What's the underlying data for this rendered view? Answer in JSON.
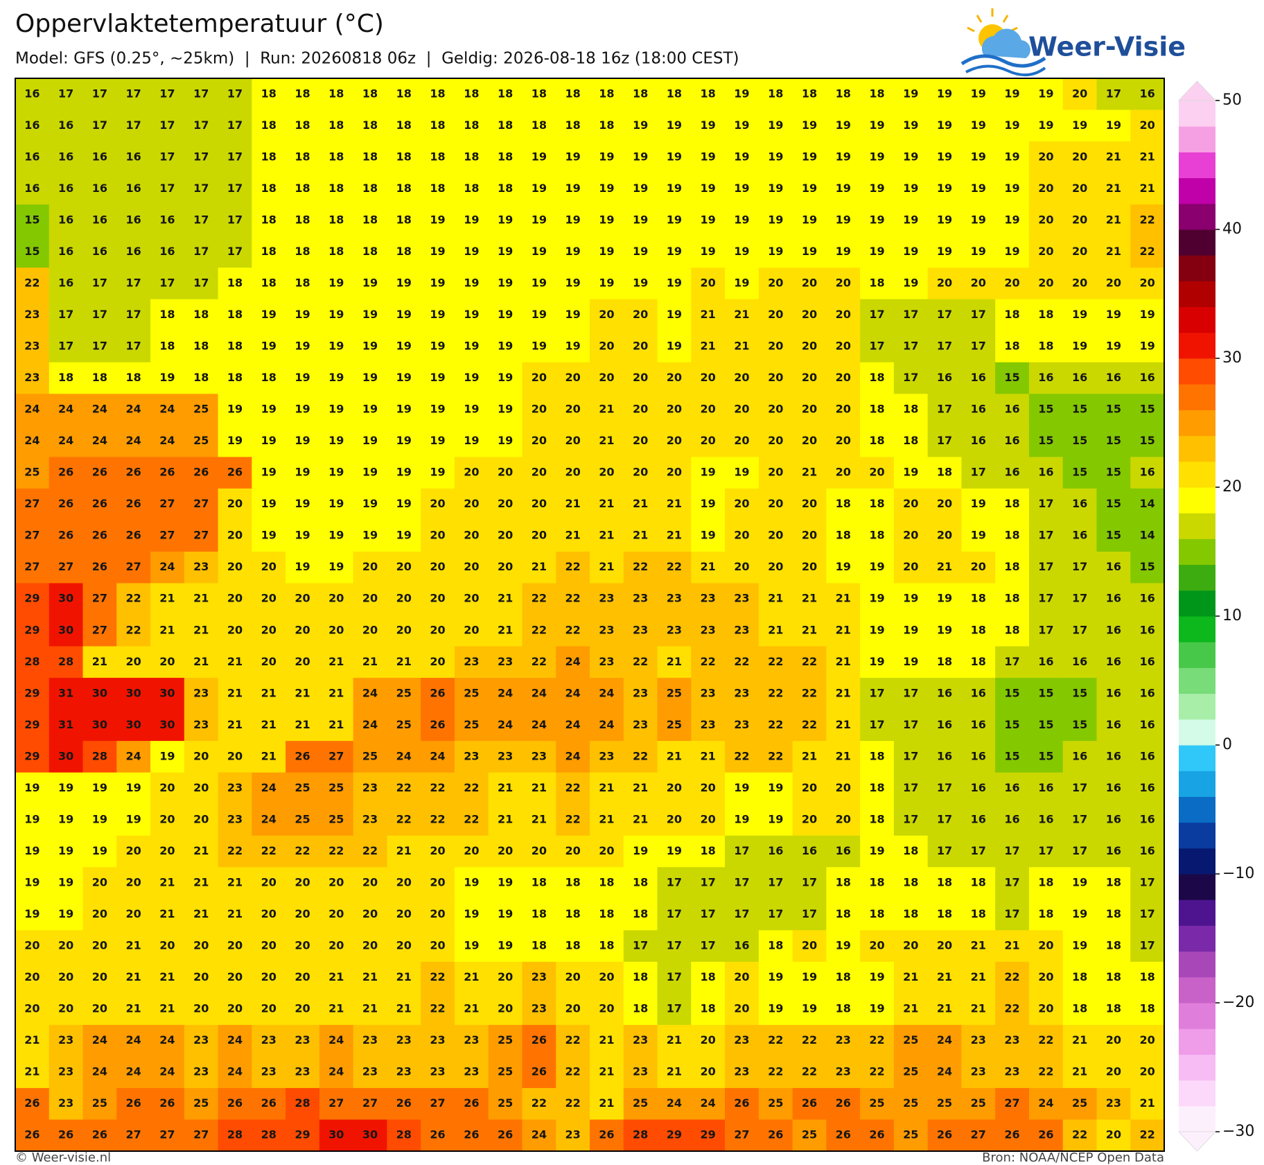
{
  "chart_data": {
    "type": "heatmap",
    "title": "Oppervlaktetemperatuur (°C)",
    "subtitle": "Model: GFS (0.25°, ~25km)  |  Run: 20260818 06z  |  Geldig: 2026-08-18 16z (18:00 CEST)",
    "brand": "Weer-Visie",
    "credit": "© Weer-visie.nl",
    "source": "Bron: NOAA/NCEP Open Data",
    "values": [
      [
        16,
        17,
        17,
        17,
        17,
        17,
        17,
        18,
        18,
        18,
        18,
        18,
        18,
        18,
        18,
        18,
        18,
        18,
        18,
        18,
        18,
        19,
        18,
        18,
        18,
        18,
        19,
        19,
        19,
        19,
        19,
        20,
        17,
        16
      ],
      [
        16,
        16,
        17,
        17,
        17,
        17,
        17,
        18,
        18,
        18,
        18,
        18,
        18,
        18,
        18,
        18,
        18,
        18,
        19,
        19,
        19,
        19,
        19,
        19,
        19,
        19,
        19,
        19,
        19,
        19,
        19,
        19,
        19,
        20
      ],
      [
        16,
        16,
        16,
        16,
        17,
        17,
        17,
        18,
        18,
        18,
        18,
        18,
        18,
        18,
        18,
        19,
        19,
        19,
        19,
        19,
        19,
        19,
        19,
        19,
        19,
        19,
        19,
        19,
        19,
        19,
        20,
        20,
        21,
        21
      ],
      [
        16,
        16,
        16,
        16,
        17,
        17,
        17,
        18,
        18,
        18,
        18,
        18,
        18,
        18,
        18,
        19,
        19,
        19,
        19,
        19,
        19,
        19,
        19,
        19,
        19,
        19,
        19,
        19,
        19,
        19,
        20,
        20,
        21,
        21
      ],
      [
        15,
        16,
        16,
        16,
        16,
        17,
        17,
        18,
        18,
        18,
        18,
        18,
        19,
        19,
        19,
        19,
        19,
        19,
        19,
        19,
        19,
        19,
        19,
        19,
        19,
        19,
        19,
        19,
        19,
        19,
        20,
        20,
        21,
        22
      ],
      [
        15,
        16,
        16,
        16,
        16,
        17,
        17,
        18,
        18,
        18,
        18,
        18,
        19,
        19,
        19,
        19,
        19,
        19,
        19,
        19,
        19,
        19,
        19,
        19,
        19,
        19,
        19,
        19,
        19,
        19,
        20,
        20,
        21,
        22
      ],
      [
        22,
        16,
        17,
        17,
        17,
        17,
        18,
        18,
        18,
        19,
        19,
        19,
        19,
        19,
        19,
        19,
        19,
        19,
        19,
        19,
        20,
        19,
        20,
        20,
        20,
        18,
        19,
        20,
        20,
        20,
        20,
        20,
        20,
        20
      ],
      [
        23,
        17,
        17,
        17,
        18,
        18,
        18,
        19,
        19,
        19,
        19,
        19,
        19,
        19,
        19,
        19,
        19,
        20,
        20,
        19,
        21,
        21,
        20,
        20,
        20,
        17,
        17,
        17,
        17,
        18,
        18,
        19,
        19,
        19
      ],
      [
        23,
        17,
        17,
        17,
        18,
        18,
        18,
        19,
        19,
        19,
        19,
        19,
        19,
        19,
        19,
        19,
        19,
        20,
        20,
        19,
        21,
        21,
        20,
        20,
        20,
        17,
        17,
        17,
        17,
        18,
        18,
        19,
        19,
        19
      ],
      [
        23,
        18,
        18,
        18,
        19,
        18,
        18,
        18,
        19,
        19,
        19,
        19,
        19,
        19,
        19,
        20,
        20,
        20,
        20,
        20,
        20,
        20,
        20,
        20,
        20,
        18,
        17,
        16,
        16,
        15,
        16,
        16,
        16,
        16
      ],
      [
        24,
        24,
        24,
        24,
        24,
        25,
        19,
        19,
        19,
        19,
        19,
        19,
        19,
        19,
        19,
        20,
        20,
        21,
        20,
        20,
        20,
        20,
        20,
        20,
        20,
        18,
        18,
        17,
        16,
        16,
        15,
        15,
        15,
        15
      ],
      [
        24,
        24,
        24,
        24,
        24,
        25,
        19,
        19,
        19,
        19,
        19,
        19,
        19,
        19,
        19,
        20,
        20,
        21,
        20,
        20,
        20,
        20,
        20,
        20,
        20,
        18,
        18,
        17,
        16,
        16,
        15,
        15,
        15,
        15
      ],
      [
        25,
        26,
        26,
        26,
        26,
        26,
        26,
        19,
        19,
        19,
        19,
        19,
        19,
        20,
        20,
        20,
        20,
        20,
        20,
        20,
        19,
        19,
        20,
        21,
        20,
        20,
        19,
        18,
        17,
        16,
        16,
        15,
        15,
        16
      ],
      [
        27,
        26,
        26,
        26,
        27,
        27,
        20,
        19,
        19,
        19,
        19,
        19,
        20,
        20,
        20,
        20,
        21,
        21,
        21,
        21,
        19,
        20,
        20,
        20,
        18,
        18,
        20,
        20,
        19,
        18,
        17,
        16,
        15,
        14
      ],
      [
        27,
        26,
        26,
        26,
        27,
        27,
        20,
        19,
        19,
        19,
        19,
        19,
        20,
        20,
        20,
        20,
        21,
        21,
        21,
        21,
        19,
        20,
        20,
        20,
        18,
        18,
        20,
        20,
        19,
        18,
        17,
        16,
        15,
        14
      ],
      [
        27,
        27,
        26,
        27,
        24,
        23,
        20,
        20,
        19,
        19,
        20,
        20,
        20,
        20,
        20,
        21,
        22,
        21,
        22,
        22,
        21,
        20,
        20,
        20,
        19,
        19,
        20,
        21,
        20,
        18,
        17,
        17,
        16,
        15
      ],
      [
        29,
        30,
        27,
        22,
        21,
        21,
        20,
        20,
        20,
        20,
        20,
        20,
        20,
        20,
        21,
        22,
        22,
        23,
        23,
        23,
        23,
        23,
        21,
        21,
        21,
        19,
        19,
        19,
        18,
        18,
        17,
        17,
        16,
        16
      ],
      [
        29,
        30,
        27,
        22,
        21,
        21,
        20,
        20,
        20,
        20,
        20,
        20,
        20,
        20,
        21,
        22,
        22,
        23,
        23,
        23,
        23,
        23,
        21,
        21,
        21,
        19,
        19,
        19,
        18,
        18,
        17,
        17,
        16,
        16
      ],
      [
        28,
        28,
        21,
        20,
        20,
        21,
        21,
        20,
        20,
        21,
        21,
        21,
        20,
        23,
        23,
        22,
        24,
        23,
        22,
        21,
        22,
        22,
        22,
        22,
        21,
        19,
        19,
        18,
        18,
        17,
        16,
        16,
        16,
        16
      ],
      [
        29,
        31,
        30,
        30,
        30,
        23,
        21,
        21,
        21,
        21,
        24,
        25,
        26,
        25,
        24,
        24,
        24,
        24,
        23,
        25,
        23,
        23,
        22,
        22,
        21,
        17,
        17,
        16,
        16,
        15,
        15,
        15,
        16,
        16
      ],
      [
        29,
        31,
        30,
        30,
        30,
        23,
        21,
        21,
        21,
        21,
        24,
        25,
        26,
        25,
        24,
        24,
        24,
        24,
        23,
        25,
        23,
        23,
        22,
        22,
        21,
        17,
        17,
        16,
        16,
        15,
        15,
        15,
        16,
        16
      ],
      [
        29,
        30,
        28,
        24,
        19,
        20,
        20,
        21,
        26,
        27,
        25,
        24,
        24,
        23,
        23,
        23,
        24,
        23,
        22,
        21,
        21,
        22,
        22,
        21,
        21,
        18,
        17,
        16,
        16,
        15,
        15,
        16,
        16,
        16
      ],
      [
        19,
        19,
        19,
        19,
        20,
        20,
        23,
        24,
        25,
        25,
        23,
        22,
        22,
        22,
        21,
        21,
        22,
        21,
        21,
        20,
        20,
        19,
        19,
        20,
        20,
        18,
        17,
        17,
        16,
        16,
        16,
        17,
        16,
        16
      ],
      [
        19,
        19,
        19,
        19,
        20,
        20,
        23,
        24,
        25,
        25,
        23,
        22,
        22,
        22,
        21,
        21,
        22,
        21,
        21,
        20,
        20,
        19,
        19,
        20,
        20,
        18,
        17,
        17,
        16,
        16,
        16,
        17,
        16,
        16
      ],
      [
        19,
        19,
        19,
        20,
        20,
        21,
        22,
        22,
        22,
        22,
        22,
        21,
        20,
        20,
        20,
        20,
        20,
        20,
        19,
        19,
        18,
        17,
        16,
        16,
        16,
        19,
        18,
        17,
        17,
        17,
        17,
        17,
        16,
        16
      ],
      [
        19,
        19,
        20,
        20,
        21,
        21,
        21,
        20,
        20,
        20,
        20,
        20,
        20,
        19,
        19,
        18,
        18,
        18,
        18,
        17,
        17,
        17,
        17,
        17,
        18,
        18,
        18,
        18,
        18,
        17,
        18,
        19,
        18,
        17
      ],
      [
        19,
        19,
        20,
        20,
        21,
        21,
        21,
        20,
        20,
        20,
        20,
        20,
        20,
        19,
        19,
        18,
        18,
        18,
        18,
        17,
        17,
        17,
        17,
        17,
        18,
        18,
        18,
        18,
        18,
        17,
        18,
        19,
        18,
        17
      ],
      [
        20,
        20,
        20,
        21,
        20,
        20,
        20,
        20,
        20,
        20,
        20,
        20,
        20,
        19,
        19,
        18,
        18,
        18,
        17,
        17,
        17,
        16,
        18,
        20,
        19,
        20,
        20,
        20,
        21,
        21,
        20,
        19,
        18,
        17
      ],
      [
        20,
        20,
        20,
        21,
        21,
        20,
        20,
        20,
        20,
        21,
        21,
        21,
        22,
        21,
        20,
        23,
        20,
        20,
        18,
        17,
        18,
        20,
        19,
        19,
        18,
        19,
        21,
        21,
        21,
        22,
        20,
        18,
        18,
        18
      ],
      [
        20,
        20,
        20,
        21,
        21,
        20,
        20,
        20,
        20,
        21,
        21,
        21,
        22,
        21,
        20,
        23,
        20,
        20,
        18,
        17,
        18,
        20,
        19,
        19,
        18,
        19,
        21,
        21,
        21,
        22,
        20,
        18,
        18,
        18
      ],
      [
        21,
        23,
        24,
        24,
        24,
        23,
        24,
        23,
        23,
        24,
        23,
        23,
        23,
        23,
        25,
        26,
        22,
        21,
        23,
        21,
        20,
        23,
        22,
        22,
        23,
        22,
        25,
        24,
        23,
        23,
        22,
        21,
        20,
        20
      ],
      [
        21,
        23,
        24,
        24,
        24,
        23,
        24,
        23,
        23,
        24,
        23,
        23,
        23,
        23,
        25,
        26,
        22,
        21,
        23,
        21,
        20,
        23,
        22,
        22,
        23,
        22,
        25,
        24,
        23,
        23,
        22,
        21,
        20,
        20
      ],
      [
        26,
        23,
        25,
        26,
        26,
        25,
        26,
        26,
        28,
        27,
        27,
        26,
        27,
        26,
        25,
        22,
        22,
        21,
        25,
        24,
        24,
        26,
        25,
        26,
        26,
        25,
        25,
        25,
        25,
        27,
        24,
        25,
        23,
        21
      ],
      [
        26,
        26,
        26,
        27,
        27,
        27,
        28,
        28,
        29,
        30,
        30,
        28,
        26,
        26,
        26,
        24,
        23,
        26,
        28,
        29,
        29,
        27,
        26,
        25,
        26,
        26,
        25,
        26,
        27,
        26,
        26,
        22,
        20,
        22
      ]
    ],
    "colorbar": {
      "clim": [
        -30,
        50
      ],
      "cticks": [
        {
          "value": -30,
          "label": "−30"
        },
        {
          "value": -20,
          "label": "−20"
        },
        {
          "value": -10,
          "label": "−10"
        },
        0,
        10,
        20,
        30,
        40,
        50
      ],
      "colors": [
        "#fdf0fd",
        "#fcd8fa",
        "#f8bcf4",
        "#ef9ce9",
        "#e07edc",
        "#c862c8",
        "#a848b8",
        "#7a2aa8",
        "#4e1490",
        "#1c0848",
        "#061870",
        "#0a3ca0",
        "#0a6cc4",
        "#18a4e4",
        "#30c8f8",
        "#d4fbe8",
        "#a8eea8",
        "#78dc78",
        "#48c848",
        "#0cb81c",
        "#00961a",
        "#3cac10",
        "#84c800",
        "#cad800",
        "#ffff00",
        "#ffe000",
        "#ffc000",
        "#ff9c00",
        "#ff7400",
        "#ff4c00",
        "#f01400",
        "#d80000",
        "#b00000",
        "#840010",
        "#500030",
        "#8a006e",
        "#c000a8",
        "#e840d4",
        "#f6a0e4",
        "#fcd0f0"
      ]
    }
  }
}
